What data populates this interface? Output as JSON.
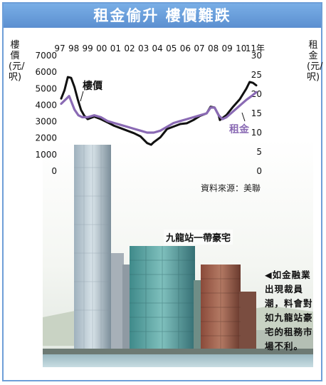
{
  "title": "租金偷升  樓價難跌",
  "photo_caption": "九龍站一帶豪宅",
  "side_note": "◀如金融業出現裁員潮，料會對如九龍站豪宅的租務市場不利。",
  "source": "資料來源：美聯",
  "colors": {
    "title_bg": "#6b9fdc",
    "price_line": "#111111",
    "rent_line": "#8a6ab4",
    "border": "#6e9fd8"
  },
  "chart_data": {
    "type": "line",
    "x_tick_labels": [
      "97",
      "98",
      "99",
      "00",
      "01",
      "02",
      "03",
      "04",
      "05",
      "06",
      "07",
      "08",
      "09",
      "10",
      "11年"
    ],
    "left_axis": {
      "label": "樓價(元/呎)",
      "ticks": [
        "7000",
        "6000",
        "5000",
        "4000",
        "3000",
        "2000",
        "1000",
        "0"
      ],
      "range": [
        0,
        7000
      ]
    },
    "right_axis": {
      "label": "租金(元/呎)",
      "ticks": [
        "30",
        "25",
        "20",
        "15",
        "10",
        "5",
        "0"
      ],
      "range": [
        0,
        30
      ]
    },
    "series": [
      {
        "name": "樓價",
        "axis": "left",
        "x": [
          1997.0,
          1997.25,
          1997.5,
          1997.75,
          1998.0,
          1998.25,
          1998.5,
          1998.75,
          1999.0,
          1999.5,
          2000.0,
          2000.5,
          2001.0,
          2001.5,
          2002.0,
          2002.5,
          2003.0,
          2003.5,
          2003.8,
          2004.0,
          2004.5,
          2005.0,
          2005.5,
          2006.0,
          2006.5,
          2007.0,
          2007.5,
          2008.0,
          2008.3,
          2008.6,
          2008.9,
          2009.0,
          2009.5,
          2010.0,
          2010.5,
          2011.0,
          2011.25,
          2011.5,
          2011.75
        ],
        "values": [
          4400,
          4900,
          5700,
          5650,
          5100,
          4350,
          3700,
          3350,
          3150,
          3300,
          3150,
          2950,
          2750,
          2600,
          2450,
          2300,
          2100,
          1700,
          1600,
          1750,
          2050,
          2550,
          2700,
          2850,
          2900,
          3100,
          3350,
          3500,
          3900,
          3850,
          3400,
          3100,
          3400,
          3900,
          4350,
          5000,
          5400,
          5350,
          5200
        ]
      },
      {
        "name": "租金",
        "axis": "right",
        "x": [
          1997.0,
          1997.3,
          1997.6,
          1998.0,
          1998.3,
          1998.6,
          1999.0,
          1999.5,
          2000.0,
          2000.5,
          2001.0,
          2001.5,
          2002.0,
          2002.5,
          2003.0,
          2003.5,
          2004.0,
          2004.5,
          2005.0,
          2005.5,
          2006.0,
          2006.5,
          2007.0,
          2007.5,
          2008.0,
          2008.3,
          2008.6,
          2008.9,
          2009.2,
          2009.5,
          2010.0,
          2010.5,
          2011.0,
          2011.4,
          2011.75
        ],
        "values": [
          17.5,
          18.5,
          19.5,
          16,
          14.5,
          14,
          14,
          14.5,
          14,
          13,
          12.5,
          12,
          11.5,
          11,
          10.5,
          10,
          10,
          10.5,
          11.5,
          12.5,
          13,
          13.5,
          14,
          14.5,
          15,
          16.5,
          16.5,
          14.5,
          13.5,
          14,
          15.5,
          17,
          18.5,
          19.5,
          20.5
        ]
      }
    ],
    "annotations": [
      "樓價",
      "租金"
    ]
  }
}
